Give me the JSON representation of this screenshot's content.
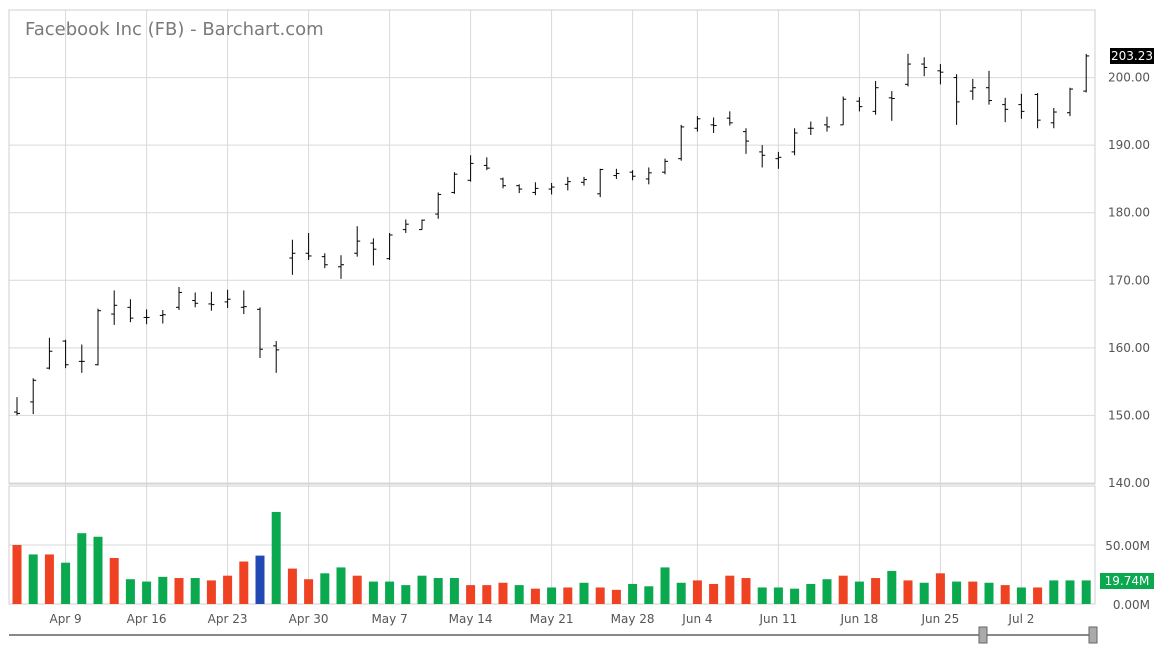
{
  "chart_data": {
    "type": "ohlc",
    "title": "Facebook Inc (FB) - Barchart.com",
    "price_ylim": [
      140,
      210
    ],
    "price_ticks": [
      "140.00",
      "150.00",
      "160.00",
      "170.00",
      "180.00",
      "190.00",
      "200.00"
    ],
    "volume_ylim": [
      0,
      100
    ],
    "volume_ticks": [
      "0.00M",
      "50.00M"
    ],
    "x_ticks": [
      {
        "label": "Apr 9",
        "index": 3
      },
      {
        "label": "Apr 16",
        "index": 8
      },
      {
        "label": "Apr 23",
        "index": 13
      },
      {
        "label": "Apr 30",
        "index": 18
      },
      {
        "label": "May 7",
        "index": 23
      },
      {
        "label": "May 14",
        "index": 28
      },
      {
        "label": "May 21",
        "index": 33
      },
      {
        "label": "May 28",
        "index": 38
      },
      {
        "label": "Jun 4",
        "index": 42
      },
      {
        "label": "Jun 11",
        "index": 47
      },
      {
        "label": "Jun 18",
        "index": 52
      },
      {
        "label": "Jun 25",
        "index": 57
      },
      {
        "label": "Jul 2",
        "index": 62
      }
    ],
    "last_price_label": "203.23",
    "last_volume_label": "19.74M",
    "colors": {
      "up": "#0aa84f",
      "down": "#ee4223",
      "neutral": "#2149b3",
      "badge_price": "#000000",
      "badge_volume": "#0aa84f"
    },
    "bars": [
      {
        "o": 150.5,
        "h": 152.7,
        "l": 150.0,
        "c": 150.3,
        "v": 50,
        "color": "down"
      },
      {
        "o": 152.0,
        "h": 155.5,
        "l": 150.2,
        "c": 155.2,
        "v": 42,
        "color": "up"
      },
      {
        "o": 157.0,
        "h": 161.5,
        "l": 156.8,
        "c": 159.5,
        "v": 42,
        "color": "down"
      },
      {
        "o": 161.0,
        "h": 161.2,
        "l": 157.0,
        "c": 157.5,
        "v": 35,
        "color": "up"
      },
      {
        "o": 158.0,
        "h": 160.5,
        "l": 156.3,
        "c": 158.0,
        "v": 60,
        "color": "up"
      },
      {
        "o": 157.5,
        "h": 165.8,
        "l": 157.4,
        "c": 165.5,
        "v": 57,
        "color": "up"
      },
      {
        "o": 165.0,
        "h": 168.5,
        "l": 163.4,
        "c": 166.3,
        "v": 39,
        "color": "down"
      },
      {
        "o": 166.0,
        "h": 167.2,
        "l": 163.8,
        "c": 164.4,
        "v": 21,
        "color": "up"
      },
      {
        "o": 164.5,
        "h": 165.7,
        "l": 163.5,
        "c": 164.5,
        "v": 19,
        "color": "up"
      },
      {
        "o": 164.8,
        "h": 165.6,
        "l": 163.6,
        "c": 164.9,
        "v": 23,
        "color": "up"
      },
      {
        "o": 166.0,
        "h": 169.0,
        "l": 165.6,
        "c": 168.2,
        "v": 22,
        "color": "down"
      },
      {
        "o": 167.0,
        "h": 168.2,
        "l": 166.0,
        "c": 166.6,
        "v": 22,
        "color": "up"
      },
      {
        "o": 166.5,
        "h": 168.3,
        "l": 165.5,
        "c": 166.4,
        "v": 20,
        "color": "down"
      },
      {
        "o": 166.8,
        "h": 168.6,
        "l": 165.9,
        "c": 167.2,
        "v": 24,
        "color": "down"
      },
      {
        "o": 166.0,
        "h": 168.5,
        "l": 165.0,
        "c": 166.1,
        "v": 36,
        "color": "down"
      },
      {
        "o": 165.7,
        "h": 166.0,
        "l": 158.5,
        "c": 159.8,
        "v": 41,
        "color": "neutral"
      },
      {
        "o": 160.3,
        "h": 161.0,
        "l": 156.3,
        "c": 159.7,
        "v": 78,
        "color": "up"
      },
      {
        "o": 173.3,
        "h": 176.0,
        "l": 170.8,
        "c": 174.0,
        "v": 30,
        "color": "down"
      },
      {
        "o": 174.0,
        "h": 177.0,
        "l": 173.0,
        "c": 173.6,
        "v": 21,
        "color": "down"
      },
      {
        "o": 173.5,
        "h": 174.0,
        "l": 171.8,
        "c": 172.3,
        "v": 26,
        "color": "up"
      },
      {
        "o": 172.0,
        "h": 173.7,
        "l": 170.2,
        "c": 172.3,
        "v": 31,
        "color": "up"
      },
      {
        "o": 174.0,
        "h": 178.0,
        "l": 173.5,
        "c": 175.8,
        "v": 24,
        "color": "down"
      },
      {
        "o": 175.5,
        "h": 176.2,
        "l": 172.2,
        "c": 174.6,
        "v": 19,
        "color": "up"
      },
      {
        "o": 173.2,
        "h": 177.0,
        "l": 173.0,
        "c": 176.7,
        "v": 19,
        "color": "up"
      },
      {
        "o": 177.5,
        "h": 179.0,
        "l": 177.0,
        "c": 178.3,
        "v": 16,
        "color": "up"
      },
      {
        "o": 177.5,
        "h": 179.0,
        "l": 177.5,
        "c": 178.9,
        "v": 24,
        "color": "up"
      },
      {
        "o": 179.8,
        "h": 183.0,
        "l": 179.1,
        "c": 182.7,
        "v": 22,
        "color": "up"
      },
      {
        "o": 183.0,
        "h": 186.0,
        "l": 182.8,
        "c": 185.7,
        "v": 22,
        "color": "up"
      },
      {
        "o": 184.8,
        "h": 188.5,
        "l": 184.6,
        "c": 187.3,
        "v": 16,
        "color": "down"
      },
      {
        "o": 187.0,
        "h": 188.2,
        "l": 186.3,
        "c": 186.6,
        "v": 16,
        "color": "down"
      },
      {
        "o": 185.0,
        "h": 185.2,
        "l": 183.6,
        "c": 184.0,
        "v": 18,
        "color": "down"
      },
      {
        "o": 184.0,
        "h": 184.2,
        "l": 182.9,
        "c": 183.5,
        "v": 16,
        "color": "up"
      },
      {
        "o": 183.0,
        "h": 184.5,
        "l": 182.6,
        "c": 183.6,
        "v": 13,
        "color": "down"
      },
      {
        "o": 183.5,
        "h": 184.4,
        "l": 182.7,
        "c": 183.8,
        "v": 14,
        "color": "up"
      },
      {
        "o": 184.2,
        "h": 185.3,
        "l": 183.3,
        "c": 184.6,
        "v": 14,
        "color": "down"
      },
      {
        "o": 184.5,
        "h": 185.3,
        "l": 184.0,
        "c": 184.9,
        "v": 18,
        "color": "up"
      },
      {
        "o": 182.8,
        "h": 186.5,
        "l": 182.3,
        "c": 186.4,
        "v": 14,
        "color": "down"
      },
      {
        "o": 185.5,
        "h": 186.5,
        "l": 185.0,
        "c": 185.8,
        "v": 12,
        "color": "down"
      },
      {
        "o": 186.0,
        "h": 186.3,
        "l": 184.8,
        "c": 185.4,
        "v": 17,
        "color": "up"
      },
      {
        "o": 185.0,
        "h": 186.7,
        "l": 184.2,
        "c": 185.9,
        "v": 15,
        "color": "up"
      },
      {
        "o": 186.0,
        "h": 188.0,
        "l": 185.7,
        "c": 187.6,
        "v": 31,
        "color": "up"
      },
      {
        "o": 188.0,
        "h": 193.0,
        "l": 187.7,
        "c": 192.7,
        "v": 18,
        "color": "up"
      },
      {
        "o": 192.5,
        "h": 194.3,
        "l": 192.0,
        "c": 193.9,
        "v": 20,
        "color": "down"
      },
      {
        "o": 193.0,
        "h": 194.1,
        "l": 191.8,
        "c": 192.9,
        "v": 17,
        "color": "down"
      },
      {
        "o": 194.0,
        "h": 195.0,
        "l": 192.9,
        "c": 193.3,
        "v": 24,
        "color": "down"
      },
      {
        "o": 192.0,
        "h": 192.5,
        "l": 188.7,
        "c": 190.6,
        "v": 22,
        "color": "down"
      },
      {
        "o": 189.0,
        "h": 190.0,
        "l": 186.7,
        "c": 188.5,
        "v": 14,
        "color": "up"
      },
      {
        "o": 188.0,
        "h": 189.0,
        "l": 186.5,
        "c": 188.2,
        "v": 14,
        "color": "up"
      },
      {
        "o": 189.0,
        "h": 192.5,
        "l": 188.5,
        "c": 191.8,
        "v": 13,
        "color": "up"
      },
      {
        "o": 192.5,
        "h": 193.5,
        "l": 191.5,
        "c": 192.5,
        "v": 17,
        "color": "up"
      },
      {
        "o": 193.0,
        "h": 194.2,
        "l": 192.0,
        "c": 192.7,
        "v": 21,
        "color": "up"
      },
      {
        "o": 193.0,
        "h": 197.2,
        "l": 193.0,
        "c": 196.8,
        "v": 24,
        "color": "down"
      },
      {
        "o": 196.5,
        "h": 197.1,
        "l": 195.0,
        "c": 195.7,
        "v": 19,
        "color": "up"
      },
      {
        "o": 195.0,
        "h": 199.5,
        "l": 194.5,
        "c": 198.5,
        "v": 22,
        "color": "down"
      },
      {
        "o": 197.0,
        "h": 198.0,
        "l": 193.6,
        "c": 196.9,
        "v": 28,
        "color": "up"
      },
      {
        "o": 199.0,
        "h": 203.5,
        "l": 198.7,
        "c": 202.0,
        "v": 20,
        "color": "down"
      },
      {
        "o": 202.0,
        "h": 203.0,
        "l": 200.2,
        "c": 201.5,
        "v": 18,
        "color": "up"
      },
      {
        "o": 201.0,
        "h": 202.0,
        "l": 199.0,
        "c": 200.8,
        "v": 26,
        "color": "down"
      },
      {
        "o": 200.0,
        "h": 200.5,
        "l": 193.0,
        "c": 196.4,
        "v": 19,
        "color": "up"
      },
      {
        "o": 198.0,
        "h": 199.8,
        "l": 196.7,
        "c": 198.5,
        "v": 19,
        "color": "down"
      },
      {
        "o": 198.5,
        "h": 201.0,
        "l": 196.0,
        "c": 196.6,
        "v": 18,
        "color": "up"
      },
      {
        "o": 196.0,
        "h": 197.0,
        "l": 193.4,
        "c": 195.3,
        "v": 16,
        "color": "down"
      },
      {
        "o": 196.0,
        "h": 197.6,
        "l": 193.9,
        "c": 195.0,
        "v": 14,
        "color": "up"
      },
      {
        "o": 197.5,
        "h": 197.7,
        "l": 192.5,
        "c": 193.7,
        "v": 14,
        "color": "down"
      },
      {
        "o": 193.3,
        "h": 195.5,
        "l": 192.5,
        "c": 194.9,
        "v": 20,
        "color": "up"
      },
      {
        "o": 194.8,
        "h": 198.5,
        "l": 194.3,
        "c": 198.3,
        "v": 20,
        "color": "up"
      },
      {
        "o": 198.0,
        "h": 203.5,
        "l": 197.8,
        "c": 203.2,
        "v": 20,
        "color": "up"
      }
    ]
  }
}
